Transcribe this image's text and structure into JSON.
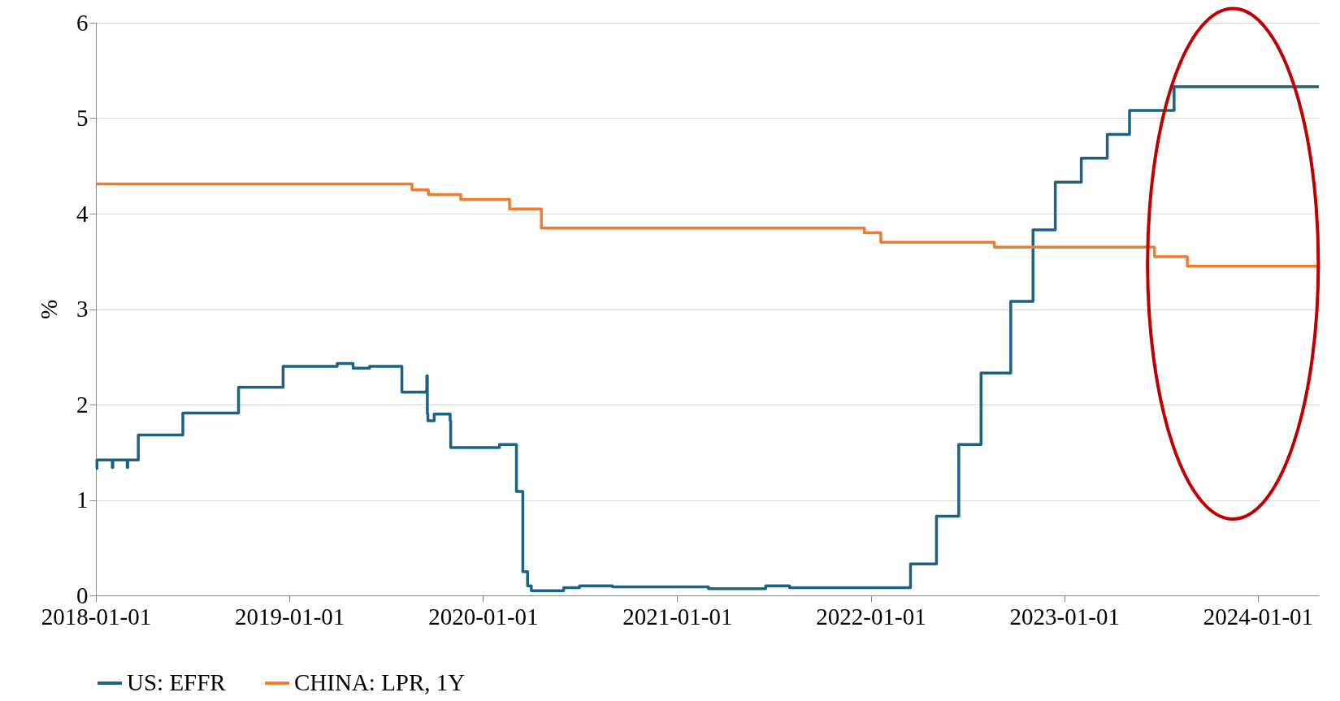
{
  "chart_data": {
    "type": "step",
    "ylabel": "%",
    "xlim": [
      "2018-01-01",
      "2024-04-25"
    ],
    "xticks": [
      "2018-01-01",
      "2019-01-01",
      "2020-01-01",
      "2021-01-01",
      "2022-01-01",
      "2023-01-01",
      "2024-01-01"
    ],
    "ylim": [
      0,
      6
    ],
    "yticks": [
      0,
      1,
      2,
      3,
      4,
      5,
      6
    ],
    "grid": "y",
    "legend": "bottom",
    "line_style": "solid",
    "series": [
      {
        "name": "US: EFFR",
        "color": "#1b6385",
        "x": [
          "2018-01-01",
          "2018-01-03",
          "2018-02-01",
          "2018-02-02",
          "2018-03-01",
          "2018-03-02",
          "2018-03-22",
          "2018-06-14",
          "2018-09-27",
          "2018-12-20",
          "2019-04-01",
          "2019-05-01",
          "2019-06-01",
          "2019-08-01",
          "2019-09-16",
          "2019-09-17",
          "2019-09-18",
          "2019-09-19",
          "2019-10-01",
          "2019-10-31",
          "2019-11-01",
          "2020-02-01",
          "2020-03-04",
          "2020-03-16",
          "2020-03-25",
          "2020-04-01",
          "2020-06-01",
          "2020-07-01",
          "2020-09-01",
          "2021-03-01",
          "2021-06-17",
          "2021-08-01",
          "2022-03-17",
          "2022-05-05",
          "2022-06-16",
          "2022-07-28",
          "2022-09-22",
          "2022-11-03",
          "2022-12-15",
          "2023-02-02",
          "2023-03-23",
          "2023-05-04",
          "2023-07-27",
          "2024-04-25"
        ],
        "values": [
          1.33,
          1.42,
          1.34,
          1.42,
          1.34,
          1.42,
          1.68,
          1.91,
          2.18,
          2.4,
          2.43,
          2.38,
          2.4,
          2.13,
          2.15,
          2.3,
          1.9,
          1.83,
          1.9,
          1.83,
          1.55,
          1.58,
          1.09,
          0.25,
          0.1,
          0.05,
          0.08,
          0.1,
          0.09,
          0.07,
          0.1,
          0.08,
          0.33,
          0.83,
          1.58,
          2.33,
          3.08,
          3.83,
          4.33,
          4.58,
          4.83,
          5.08,
          5.33,
          5.33
        ]
      },
      {
        "name": "CHINA: LPR, 1Y",
        "color": "#ed7d31",
        "x": [
          "2018-01-01",
          "2019-08-20",
          "2019-09-20",
          "2019-11-20",
          "2020-02-20",
          "2020-04-20",
          "2021-12-20",
          "2022-01-20",
          "2022-08-22",
          "2023-06-20",
          "2023-08-21",
          "2024-04-25"
        ],
        "values": [
          4.31,
          4.25,
          4.2,
          4.15,
          4.05,
          3.85,
          3.8,
          3.7,
          3.65,
          3.55,
          3.45,
          3.45
        ]
      }
    ]
  }
}
